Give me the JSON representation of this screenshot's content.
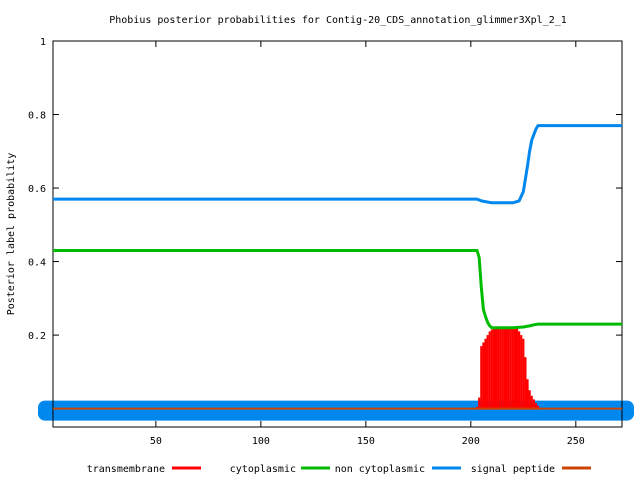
{
  "chart_data": {
    "type": "line",
    "title": "Phobius posterior probabilities for Contig-20_CDS_annotation_glimmer3Xpl_2_1",
    "ylabel": "Posterior label probability",
    "xlabel": "",
    "xlim": [
      1,
      272
    ],
    "ylim": [
      -0.05,
      1
    ],
    "x_ticks": [
      50,
      100,
      150,
      200,
      250
    ],
    "y_ticks": [
      0.2,
      0.4,
      0.6,
      0.8,
      1
    ],
    "y_tick_labels": [
      "0.2",
      "0.4",
      "0.6",
      "0.8",
      "1"
    ],
    "grid": false,
    "legend_position": "bottom",
    "series": [
      {
        "name": "transmembrane",
        "style": "impulses",
        "color": "#ff0000",
        "points": [
          [
            203,
            0.005
          ],
          [
            204,
            0.03
          ],
          [
            205,
            0.17
          ],
          [
            206,
            0.18
          ],
          [
            207,
            0.19
          ],
          [
            208,
            0.2
          ],
          [
            209,
            0.21
          ],
          [
            210,
            0.215
          ],
          [
            211,
            0.22
          ],
          [
            212,
            0.22
          ],
          [
            213,
            0.22
          ],
          [
            214,
            0.22
          ],
          [
            215,
            0.22
          ],
          [
            216,
            0.22
          ],
          [
            217,
            0.22
          ],
          [
            218,
            0.22
          ],
          [
            219,
            0.22
          ],
          [
            220,
            0.22
          ],
          [
            221,
            0.22
          ],
          [
            222,
            0.22
          ],
          [
            223,
            0.21
          ],
          [
            224,
            0.2
          ],
          [
            225,
            0.19
          ],
          [
            226,
            0.14
          ],
          [
            227,
            0.08
          ],
          [
            228,
            0.05
          ],
          [
            229,
            0.035
          ],
          [
            230,
            0.025
          ],
          [
            231,
            0.015
          ],
          [
            232,
            0.008
          ]
        ]
      },
      {
        "name": "cytoplasmic",
        "style": "line",
        "color": "#00bb00",
        "points": [
          [
            1,
            0.43
          ],
          [
            50,
            0.43
          ],
          [
            100,
            0.43
          ],
          [
            150,
            0.43
          ],
          [
            200,
            0.43
          ],
          [
            203,
            0.43
          ],
          [
            204,
            0.41
          ],
          [
            205,
            0.33
          ],
          [
            206,
            0.27
          ],
          [
            207,
            0.25
          ],
          [
            208,
            0.235
          ],
          [
            209,
            0.225
          ],
          [
            210,
            0.22
          ],
          [
            215,
            0.22
          ],
          [
            220,
            0.22
          ],
          [
            225,
            0.222
          ],
          [
            228,
            0.225
          ],
          [
            230,
            0.228
          ],
          [
            232,
            0.23
          ],
          [
            250,
            0.23
          ],
          [
            272,
            0.23
          ]
        ]
      },
      {
        "name": "non cytoplasmic",
        "style": "line",
        "color": "#0088ee",
        "points": [
          [
            1,
            0.57
          ],
          [
            50,
            0.57
          ],
          [
            100,
            0.57
          ],
          [
            150,
            0.57
          ],
          [
            200,
            0.57
          ],
          [
            203,
            0.57
          ],
          [
            205,
            0.565
          ],
          [
            210,
            0.56
          ],
          [
            215,
            0.56
          ],
          [
            220,
            0.56
          ],
          [
            223,
            0.565
          ],
          [
            225,
            0.59
          ],
          [
            227,
            0.66
          ],
          [
            228,
            0.7
          ],
          [
            229,
            0.73
          ],
          [
            230,
            0.745
          ],
          [
            231,
            0.76
          ],
          [
            232,
            0.77
          ],
          [
            250,
            0.77
          ],
          [
            272,
            0.77
          ]
        ]
      },
      {
        "name": "signal peptide",
        "style": "line",
        "color": "#cc4400",
        "points": [
          [
            1,
            0
          ],
          [
            272,
            0
          ]
        ]
      }
    ]
  },
  "legend": [
    {
      "name": "transmembrane",
      "color": "#ff0000"
    },
    {
      "name": "cytoplasmic",
      "color": "#00bb00"
    },
    {
      "name": "non cytoplasmic",
      "color": "#0088ee"
    },
    {
      "name": "signal peptide",
      "color": "#cc4400"
    }
  ]
}
